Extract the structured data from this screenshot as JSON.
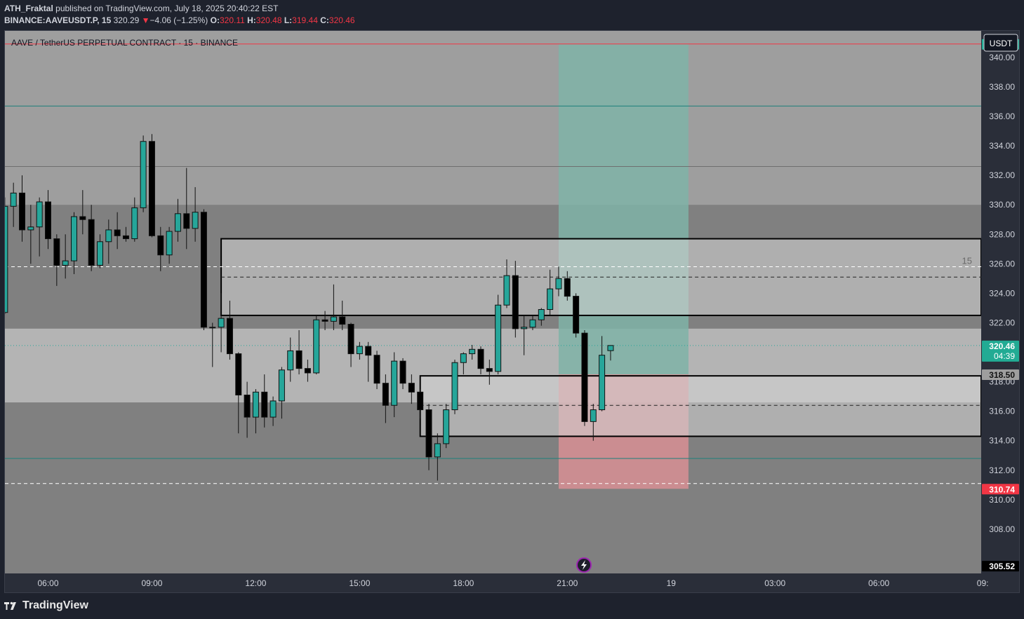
{
  "header": {
    "author": "ATH_Fraktal",
    "published_text": "published on TradingView.com, July 18, 2025 20:40:22 EST",
    "symbol": "BINANCE:AAVEUSDT.P, 15",
    "last": "320.29",
    "change_arrow": "▼",
    "change": "−4.06 (−1.25%)",
    "o_label": "O:",
    "o_value": "320.11",
    "h_label": "H:",
    "h_value": "320.48",
    "l_label": "L:",
    "l_value": "319.44",
    "c_label": "C:",
    "c_value": "320.46"
  },
  "chart_title": "AAVE / TetherUS PERPETUAL CONTRACT · 15 · BINANCE",
  "currency_button": "USDT",
  "interval_marker": "15",
  "footer_brand": "TradingView",
  "colors": {
    "bull": "#26a69a",
    "bear": "#000000",
    "target_zone": "#7fb3a7",
    "stop_zone": "#d88f94",
    "red_label": "#f23645",
    "green_label": "#22ab94",
    "lightning": "#9c27b0"
  },
  "chart_data": {
    "type": "candlestick",
    "x_axis_ticks": [
      "06:00",
      "09:00",
      "12:00",
      "15:00",
      "18:00",
      "21:00",
      "19",
      "03:00",
      "06:00",
      "09:"
    ],
    "y_axis_ticks": [
      "340.00",
      "338.00",
      "336.00",
      "334.00",
      "332.00",
      "330.00",
      "328.00",
      "326.00",
      "324.00",
      "322.00",
      "318.00",
      "316.00",
      "314.00",
      "312.00",
      "310.00",
      "308.00"
    ],
    "y_range": [
      305.0,
      341.8
    ],
    "price_labels": [
      {
        "text": "340.91",
        "price": 340.91,
        "style": "green"
      },
      {
        "text": "320.46",
        "sub": "04:39",
        "price": 320.46,
        "style": "green"
      },
      {
        "text": "318.50",
        "price": 318.5,
        "style": "gray"
      },
      {
        "text": "310.74",
        "price": 310.74,
        "style": "red"
      },
      {
        "text": "305.52",
        "price": 305.52,
        "style": "dark"
      }
    ],
    "zones": [
      {
        "name": "upper-dark-zone",
        "top": 330.0,
        "bottom": 321.6
      },
      {
        "name": "lower-dark-zone",
        "top": 316.6,
        "bottom": 305.0
      }
    ],
    "boxes": [
      {
        "name": "supply-box",
        "top": 327.7,
        "bottom": 322.5,
        "x_start": "11:00",
        "x_end": "edge",
        "mid": 325.1
      },
      {
        "name": "demand-box",
        "top": 318.4,
        "bottom": 314.3,
        "x_start": "16:45",
        "x_end": "edge",
        "mid": 316.4
      }
    ],
    "horizontal_lines": [
      {
        "name": "top-red-line",
        "price": 340.91,
        "style": "red"
      },
      {
        "name": "teal-line-upper",
        "price": 336.7,
        "style": "teal"
      },
      {
        "name": "gray-line",
        "price": 332.6,
        "style": "gray"
      },
      {
        "name": "dashed-line-upper",
        "price": 325.8,
        "style": "dashed"
      },
      {
        "name": "teal-line-lower",
        "price": 312.8,
        "style": "teal"
      },
      {
        "name": "dashed-line-lower",
        "price": 311.1,
        "style": "dashed"
      }
    ],
    "position": {
      "entry": 318.5,
      "target": 340.91,
      "stop": 310.74,
      "start": "20:45",
      "end": "00:30"
    },
    "candles": [
      {
        "t": "04:45",
        "o": 322.7,
        "h": 330.5,
        "l": 322.6,
        "c": 329.9
      },
      {
        "t": "05:00",
        "o": 329.9,
        "h": 331.5,
        "l": 328.5,
        "c": 330.8
      },
      {
        "t": "05:15",
        "o": 330.8,
        "h": 332.0,
        "l": 327.5,
        "c": 328.3
      },
      {
        "t": "05:30",
        "o": 328.3,
        "h": 330.0,
        "l": 326.0,
        "c": 328.5
      },
      {
        "t": "05:45",
        "o": 328.5,
        "h": 330.5,
        "l": 326.5,
        "c": 330.2
      },
      {
        "t": "06:00",
        "o": 330.2,
        "h": 331.0,
        "l": 327.0,
        "c": 327.7
      },
      {
        "t": "06:15",
        "o": 327.7,
        "h": 328.0,
        "l": 324.5,
        "c": 325.9
      },
      {
        "t": "06:30",
        "o": 325.9,
        "h": 328.0,
        "l": 325.0,
        "c": 326.2
      },
      {
        "t": "06:45",
        "o": 326.2,
        "h": 329.5,
        "l": 325.3,
        "c": 329.2
      },
      {
        "t": "07:00",
        "o": 329.2,
        "h": 331.0,
        "l": 328.0,
        "c": 329.0
      },
      {
        "t": "07:15",
        "o": 329.0,
        "h": 330.0,
        "l": 325.5,
        "c": 325.9
      },
      {
        "t": "07:30",
        "o": 325.9,
        "h": 328.0,
        "l": 325.7,
        "c": 327.5
      },
      {
        "t": "07:45",
        "o": 327.5,
        "h": 329.0,
        "l": 326.0,
        "c": 328.3
      },
      {
        "t": "08:00",
        "o": 328.3,
        "h": 329.5,
        "l": 327.0,
        "c": 327.9
      },
      {
        "t": "08:15",
        "o": 327.9,
        "h": 328.5,
        "l": 327.5,
        "c": 327.7
      },
      {
        "t": "08:30",
        "o": 327.7,
        "h": 330.5,
        "l": 327.5,
        "c": 329.8
      },
      {
        "t": "08:45",
        "o": 329.8,
        "h": 334.7,
        "l": 329.5,
        "c": 334.3
      },
      {
        "t": "09:00",
        "o": 334.3,
        "h": 334.8,
        "l": 327.8,
        "c": 327.9
      },
      {
        "t": "09:15",
        "o": 327.9,
        "h": 328.5,
        "l": 325.5,
        "c": 326.6
      },
      {
        "t": "09:30",
        "o": 326.6,
        "h": 328.5,
        "l": 326.0,
        "c": 328.2
      },
      {
        "t": "09:45",
        "o": 328.2,
        "h": 330.4,
        "l": 327.5,
        "c": 329.4
      },
      {
        "t": "10:00",
        "o": 329.4,
        "h": 332.5,
        "l": 327.0,
        "c": 328.4
      },
      {
        "t": "10:15",
        "o": 328.4,
        "h": 331.2,
        "l": 327.5,
        "c": 329.5
      },
      {
        "t": "10:30",
        "o": 329.5,
        "h": 329.7,
        "l": 321.5,
        "c": 321.7
      },
      {
        "t": "10:45",
        "o": 321.7,
        "h": 322.0,
        "l": 319.0,
        "c": 321.7
      },
      {
        "t": "11:00",
        "o": 321.7,
        "h": 324.0,
        "l": 320.0,
        "c": 322.3
      },
      {
        "t": "11:15",
        "o": 322.3,
        "h": 323.5,
        "l": 319.5,
        "c": 319.9
      },
      {
        "t": "11:30",
        "o": 319.9,
        "h": 320.0,
        "l": 314.5,
        "c": 317.1
      },
      {
        "t": "11:45",
        "o": 317.1,
        "h": 318.0,
        "l": 314.2,
        "c": 315.6
      },
      {
        "t": "12:00",
        "o": 315.6,
        "h": 317.5,
        "l": 314.5,
        "c": 317.3
      },
      {
        "t": "12:15",
        "o": 317.3,
        "h": 318.5,
        "l": 314.9,
        "c": 315.6
      },
      {
        "t": "12:30",
        "o": 315.6,
        "h": 317.0,
        "l": 315.0,
        "c": 316.7
      },
      {
        "t": "12:45",
        "o": 316.7,
        "h": 319.0,
        "l": 315.5,
        "c": 318.8
      },
      {
        "t": "13:00",
        "o": 318.8,
        "h": 321.0,
        "l": 318.0,
        "c": 320.1
      },
      {
        "t": "13:15",
        "o": 320.1,
        "h": 321.5,
        "l": 318.5,
        "c": 318.9
      },
      {
        "t": "13:30",
        "o": 318.9,
        "h": 319.5,
        "l": 318.0,
        "c": 318.6
      },
      {
        "t": "13:45",
        "o": 318.6,
        "h": 322.5,
        "l": 318.5,
        "c": 322.2
      },
      {
        "t": "14:00",
        "o": 322.2,
        "h": 322.8,
        "l": 321.5,
        "c": 322.1
      },
      {
        "t": "14:15",
        "o": 322.1,
        "h": 324.6,
        "l": 321.5,
        "c": 322.4
      },
      {
        "t": "14:30",
        "o": 322.4,
        "h": 323.5,
        "l": 321.5,
        "c": 321.9
      },
      {
        "t": "14:45",
        "o": 321.9,
        "h": 322.0,
        "l": 319.0,
        "c": 319.9
      },
      {
        "t": "15:00",
        "o": 319.9,
        "h": 320.7,
        "l": 319.5,
        "c": 320.4
      },
      {
        "t": "15:15",
        "o": 320.4,
        "h": 320.7,
        "l": 318.0,
        "c": 319.8
      },
      {
        "t": "15:30",
        "o": 319.8,
        "h": 320.1,
        "l": 317.5,
        "c": 317.9
      },
      {
        "t": "15:45",
        "o": 317.9,
        "h": 318.5,
        "l": 315.2,
        "c": 316.4
      },
      {
        "t": "16:00",
        "o": 316.4,
        "h": 320.0,
        "l": 315.6,
        "c": 319.4
      },
      {
        "t": "16:15",
        "o": 319.4,
        "h": 319.6,
        "l": 317.5,
        "c": 317.9
      },
      {
        "t": "16:30",
        "o": 317.9,
        "h": 318.5,
        "l": 316.5,
        "c": 317.3
      },
      {
        "t": "16:45",
        "o": 317.3,
        "h": 317.5,
        "l": 315.5,
        "c": 316.1
      },
      {
        "t": "17:00",
        "o": 316.1,
        "h": 316.5,
        "l": 312.0,
        "c": 312.9
      },
      {
        "t": "17:15",
        "o": 312.9,
        "h": 314.5,
        "l": 311.3,
        "c": 313.8
      },
      {
        "t": "17:30",
        "o": 313.8,
        "h": 316.5,
        "l": 313.5,
        "c": 316.1
      },
      {
        "t": "17:45",
        "o": 316.1,
        "h": 319.5,
        "l": 315.8,
        "c": 319.3
      },
      {
        "t": "18:00",
        "o": 319.3,
        "h": 320.0,
        "l": 318.5,
        "c": 319.9
      },
      {
        "t": "18:15",
        "o": 319.9,
        "h": 320.5,
        "l": 319.5,
        "c": 320.2
      },
      {
        "t": "18:30",
        "o": 320.2,
        "h": 320.4,
        "l": 318.5,
        "c": 318.9
      },
      {
        "t": "18:45",
        "o": 318.9,
        "h": 319.5,
        "l": 317.8,
        "c": 318.7
      },
      {
        "t": "19:00",
        "o": 318.7,
        "h": 323.9,
        "l": 318.5,
        "c": 323.2
      },
      {
        "t": "19:15",
        "o": 323.2,
        "h": 326.3,
        "l": 323.0,
        "c": 325.2
      },
      {
        "t": "19:30",
        "o": 325.2,
        "h": 326.2,
        "l": 321.0,
        "c": 321.6
      },
      {
        "t": "19:45",
        "o": 321.6,
        "h": 322.5,
        "l": 319.8,
        "c": 321.7
      },
      {
        "t": "20:00",
        "o": 321.7,
        "h": 322.5,
        "l": 321.5,
        "c": 322.2
      },
      {
        "t": "20:15",
        "o": 322.2,
        "h": 323.0,
        "l": 321.8,
        "c": 322.9
      },
      {
        "t": "20:30",
        "o": 322.9,
        "h": 325.6,
        "l": 322.5,
        "c": 324.3
      },
      {
        "t": "20:45",
        "o": 324.3,
        "h": 325.8,
        "l": 323.8,
        "c": 325.0
      },
      {
        "t": "21:00",
        "o": 325.0,
        "h": 325.5,
        "l": 323.5,
        "c": 323.8
      },
      {
        "t": "21:15",
        "o": 323.8,
        "h": 324.0,
        "l": 321.0,
        "c": 321.3
      },
      {
        "t": "21:30",
        "o": 321.3,
        "h": 321.5,
        "l": 315.0,
        "c": 315.3
      },
      {
        "t": "21:45",
        "o": 315.3,
        "h": 316.5,
        "l": 314.0,
        "c": 316.1
      },
      {
        "t": "22:00",
        "o": 316.1,
        "h": 321.1,
        "l": 316.0,
        "c": 319.8
      },
      {
        "t": "22:15",
        "o": 320.11,
        "h": 320.48,
        "l": 319.44,
        "c": 320.46
      }
    ]
  }
}
